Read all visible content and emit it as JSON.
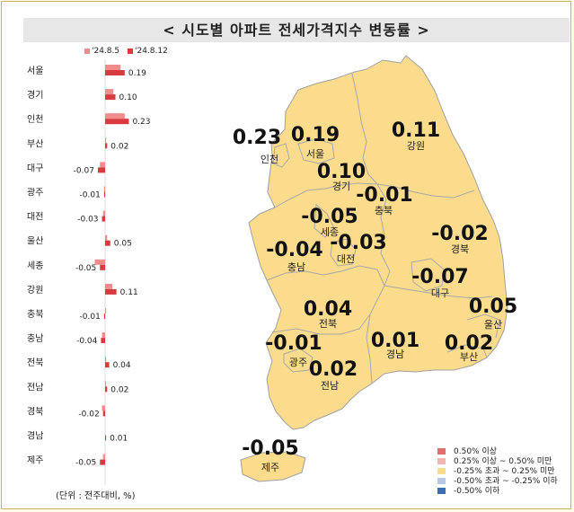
{
  "title": "< 시도별 아파트 전세가격지수 변동률 >",
  "unit_note": "(단위 : 전주대비, %)",
  "colors": {
    "prev_week": "#f08c8c",
    "this_week": "#d93a40",
    "map_fill": "#fbdc8c",
    "map_stroke": "#a0a0a0"
  },
  "chart_data": {
    "type": "bar",
    "orientation": "horizontal",
    "categories": [
      "서울",
      "경기",
      "인천",
      "부산",
      "대구",
      "광주",
      "대전",
      "울산",
      "세종",
      "강원",
      "충북",
      "충남",
      "전북",
      "전남",
      "경북",
      "경남",
      "제주"
    ],
    "series": [
      {
        "name": "'24.8.5",
        "values": [
          0.15,
          0.08,
          0.19,
          0.01,
          -0.05,
          -0.01,
          -0.02,
          0.02,
          -0.1,
          0.07,
          0.01,
          -0.03,
          0.01,
          0.01,
          -0.03,
          0.0,
          -0.02
        ]
      },
      {
        "name": "'24.8.12",
        "values": [
          0.19,
          0.1,
          0.23,
          0.02,
          -0.07,
          -0.01,
          -0.03,
          0.05,
          -0.05,
          0.11,
          -0.01,
          -0.04,
          0.04,
          0.02,
          -0.02,
          0.01,
          -0.05
        ]
      }
    ],
    "value_labels": [
      "0.19",
      "0.10",
      "0.23",
      "0.02",
      "-0.07",
      "-0.01",
      "-0.03",
      "0.05",
      "-0.05",
      "0.11",
      "-0.01",
      "-0.04",
      "0.04",
      "0.02",
      "-0.02",
      "0.01",
      "-0.05"
    ]
  },
  "map": {
    "regions": [
      {
        "id": "incheon",
        "name": "인천",
        "value": "0.23"
      },
      {
        "id": "seoul",
        "name": "서울",
        "value": "0.19"
      },
      {
        "id": "gyeonggi",
        "name": "경기",
        "value": "0.10"
      },
      {
        "id": "gangwon",
        "name": "강원",
        "value": "0.11"
      },
      {
        "id": "chungbuk",
        "name": "충북",
        "value": "-0.01"
      },
      {
        "id": "sejong",
        "name": "세종",
        "value": "-0.05"
      },
      {
        "id": "daejeon",
        "name": "대전",
        "value": "-0.03"
      },
      {
        "id": "chungnam",
        "name": "충남",
        "value": "-0.04"
      },
      {
        "id": "gyeongbuk",
        "name": "경북",
        "value": "-0.02"
      },
      {
        "id": "daegu",
        "name": "대구",
        "value": "-0.07"
      },
      {
        "id": "ulsan",
        "name": "울산",
        "value": "0.05"
      },
      {
        "id": "jeonbuk",
        "name": "전북",
        "value": "0.04"
      },
      {
        "id": "gwangju",
        "name": "광주",
        "value": "-0.01"
      },
      {
        "id": "gyeongnam",
        "name": "경남",
        "value": "0.01"
      },
      {
        "id": "busan",
        "name": "부산",
        "value": "0.02"
      },
      {
        "id": "jeonnam",
        "name": "전남",
        "value": "0.02"
      },
      {
        "id": "jeju",
        "name": "제주",
        "value": "-0.05"
      }
    ]
  },
  "legend": [
    {
      "label": "0.50% 이상",
      "color": "#e56c6c"
    },
    {
      "label": "0.25% 이상 ~ 0.50% 미만",
      "color": "#f4b4b4"
    },
    {
      "label": "-0.25% 초과 ~ 0.25% 미만",
      "color": "#fbdc8c"
    },
    {
      "label": "-0.50% 초과 ~ -0.25% 이하",
      "color": "#b8c8e4"
    },
    {
      "label": "-0.50% 이하",
      "color": "#3a6db5"
    }
  ]
}
